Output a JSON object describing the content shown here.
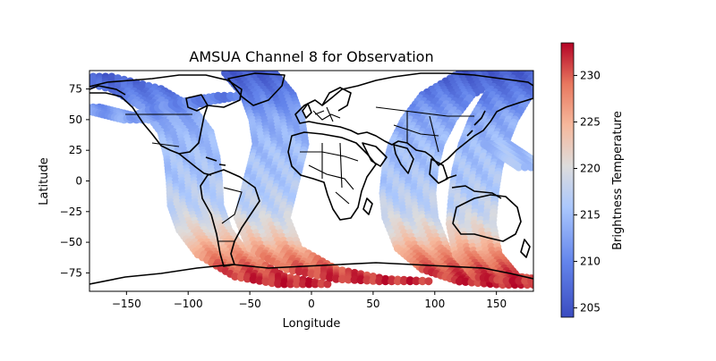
{
  "chart_data": {
    "type": "scatter",
    "title": "AMSUA Channel 8 for Observation",
    "xlabel": "Longitude",
    "ylabel": "Latitude",
    "xlim": [
      -180,
      180
    ],
    "ylim": [
      -90,
      90
    ],
    "x_ticks": [
      -150,
      -100,
      -50,
      0,
      50,
      100,
      150
    ],
    "y_ticks": [
      -75,
      -50,
      -25,
      0,
      25,
      50,
      75
    ],
    "grid": false,
    "colorbar": {
      "label": "Brightness Temperature",
      "range": [
        204,
        233.5
      ],
      "ticks": [
        205,
        210,
        215,
        220,
        225,
        230
      ],
      "colormap": "coolwarm"
    },
    "swaths": [
      {
        "name": "swath-a",
        "points": [
          [
            -180,
            85
          ],
          [
            -140,
            75
          ],
          [
            -115,
            60
          ],
          [
            -100,
            40
          ],
          [
            -95,
            20
          ],
          [
            -93,
            0
          ],
          [
            -92,
            -20
          ],
          [
            -85,
            -40
          ],
          [
            -70,
            -60
          ],
          [
            -40,
            -78
          ],
          [
            0,
            -85
          ]
        ],
        "half_width": 22
      },
      {
        "name": "swath-b",
        "points": [
          [
            -50,
            88
          ],
          [
            -35,
            70
          ],
          [
            -28,
            50
          ],
          [
            -25,
            30
          ],
          [
            -30,
            10
          ],
          [
            -35,
            -10
          ],
          [
            -40,
            -30
          ],
          [
            -30,
            -55
          ],
          [
            0,
            -72
          ],
          [
            40,
            -80
          ],
          [
            80,
            -82
          ]
        ],
        "half_width": 20
      },
      {
        "name": "swath-c",
        "points": [
          [
            140,
            88
          ],
          [
            110,
            70
          ],
          [
            95,
            50
          ],
          [
            85,
            30
          ],
          [
            80,
            10
          ],
          [
            78,
            -10
          ],
          [
            80,
            -30
          ],
          [
            90,
            -55
          ],
          [
            110,
            -72
          ],
          [
            140,
            -82
          ],
          [
            180,
            -85
          ]
        ],
        "half_width": 20
      },
      {
        "name": "swath-d",
        "points": [
          [
            175,
            88
          ],
          [
            160,
            70
          ],
          [
            148,
            50
          ],
          [
            140,
            30
          ],
          [
            135,
            10
          ],
          [
            132,
            -10
          ],
          [
            130,
            -35
          ],
          [
            135,
            -60
          ],
          [
            150,
            -78
          ],
          [
            180,
            -82
          ]
        ],
        "half_width": 18
      },
      {
        "name": "swath-e",
        "points": [
          [
            -180,
            60
          ],
          [
            -160,
            55
          ],
          [
            -140,
            50
          ],
          [
            -120,
            58
          ],
          [
            -90,
            65
          ],
          [
            -60,
            70
          ]
        ],
        "half_width": 12
      },
      {
        "name": "swath-f",
        "points": [
          [
            150,
            30
          ],
          [
            165,
            20
          ],
          [
            180,
            10
          ]
        ],
        "half_width": 10
      }
    ],
    "temperature_profile": [
      {
        "lat": 90,
        "value": 205
      },
      {
        "lat": 70,
        "value": 209
      },
      {
        "lat": 50,
        "value": 213
      },
      {
        "lat": 25,
        "value": 215
      },
      {
        "lat": 0,
        "value": 216
      },
      {
        "lat": -25,
        "value": 218
      },
      {
        "lat": -45,
        "value": 222
      },
      {
        "lat": -60,
        "value": 227
      },
      {
        "lat": -75,
        "value": 231
      },
      {
        "lat": -90,
        "value": 233
      }
    ]
  }
}
